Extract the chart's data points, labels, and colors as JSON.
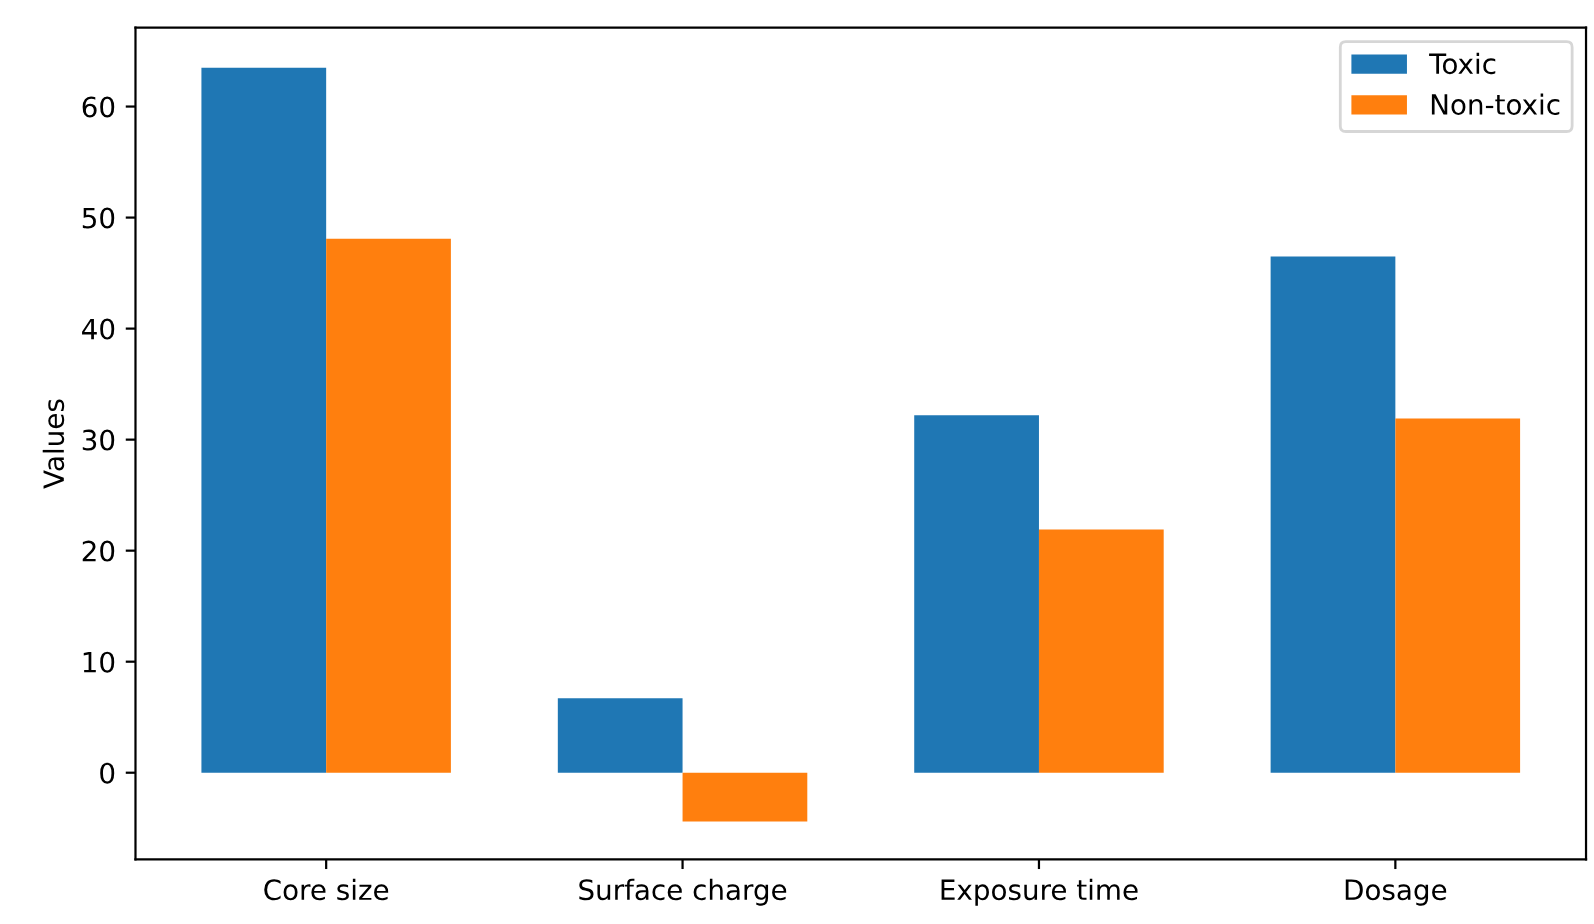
{
  "chart_data": {
    "type": "bar",
    "ylabel": "Values",
    "categories": [
      "Core size",
      "Surface charge",
      "Exposure time",
      "Dosage"
    ],
    "series": [
      {
        "name": "Toxic",
        "color": "#1f77b4",
        "values": [
          63.5,
          6.7,
          32.2,
          46.5
        ]
      },
      {
        "name": "Non-toxic",
        "color": "#ff7f0e",
        "values": [
          48.1,
          -4.4,
          21.9,
          31.9
        ]
      }
    ],
    "ylim": [
      -7.8,
      67.1
    ],
    "yticks": [
      0,
      10,
      20,
      30,
      40,
      50,
      60
    ],
    "grid": false,
    "legend": "top right"
  }
}
